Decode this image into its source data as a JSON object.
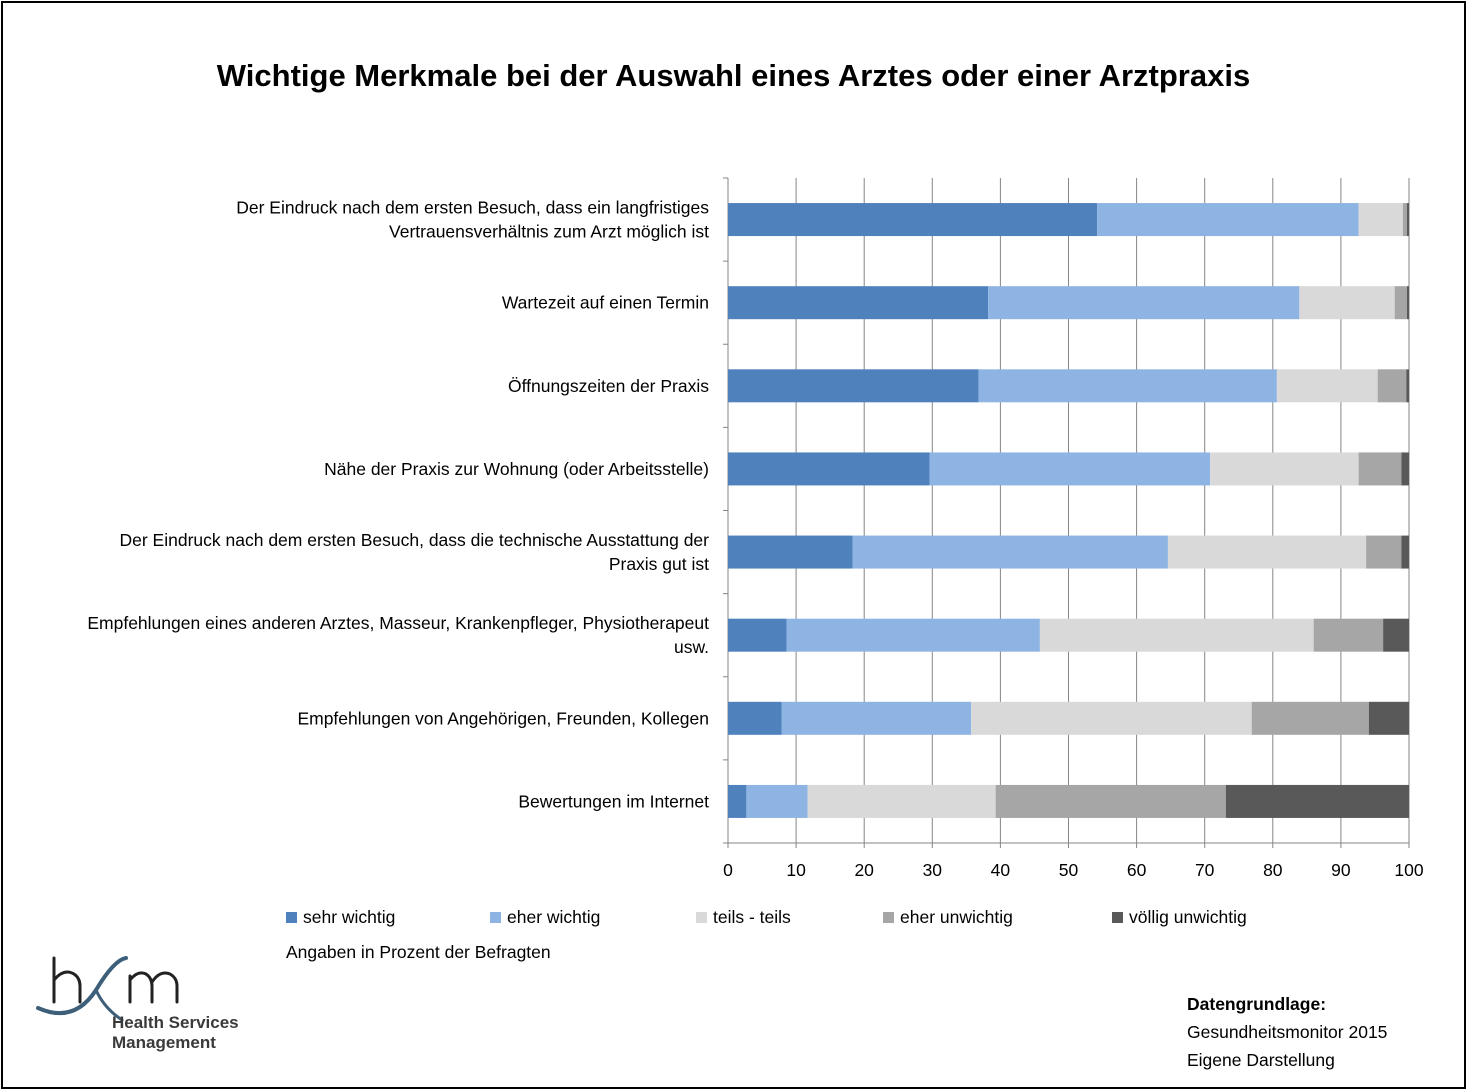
{
  "title": "Wichtige Merkmale bei der Auswahl eines Arztes oder einer Arztpraxis",
  "note": "Angaben in Prozent der Befragten",
  "logo": {
    "mark": "hsm",
    "name_line1": "Health Services",
    "name_line2": "Management",
    "color": "#3d5f7a"
  },
  "source": {
    "heading": "Datengrundlage:",
    "line1": "Gesundheitsmonitor 2015",
    "line2": "Eigene Darstellung"
  },
  "chart_data": {
    "type": "bar",
    "orientation": "horizontal",
    "stacked": true,
    "title": "Wichtige Merkmale bei der Auswahl eines Arztes oder einer Arztpraxis",
    "xlim": [
      0,
      100
    ],
    "xticks": [
      0,
      10,
      20,
      30,
      40,
      50,
      60,
      70,
      80,
      90,
      100
    ],
    "grid": "vertical",
    "legend_position": "bottom",
    "categories": [
      [
        "Der Eindruck nach dem ersten Besuch, dass ein langfristiges",
        "Vertrauensverhältnis zum Arzt möglich ist"
      ],
      [
        "Wartezeit auf einen Termin"
      ],
      [
        "Öffnungszeiten der Praxis"
      ],
      [
        "Nähe der Praxis zur Wohnung (oder Arbeitsstelle)"
      ],
      [
        "Der Eindruck nach dem ersten Besuch, dass die technische Ausstattung der",
        "Praxis gut ist"
      ],
      [
        "Empfehlungen eines anderen Arztes, Masseur, Krankenpfleger, Physiotherapeut",
        "usw."
      ],
      [
        "Empfehlungen von Angehörigen, Freunden, Kollegen"
      ],
      [
        "Bewertungen im Internet"
      ]
    ],
    "series": [
      {
        "name": "sehr wichtig",
        "color": "#4f81bd",
        "values": [
          54.2,
          38.2,
          36.8,
          29.6,
          18.3,
          8.6,
          7.9,
          2.7
        ]
      },
      {
        "name": "eher wichtig",
        "color": "#8eb4e3",
        "values": [
          38.4,
          45.7,
          43.8,
          41.2,
          46.3,
          37.2,
          27.8,
          9.0
        ]
      },
      {
        "name": "teils - teils",
        "color": "#d9d9d9",
        "values": [
          6.5,
          14.0,
          14.8,
          21.8,
          29.1,
          40.2,
          41.2,
          27.6
        ]
      },
      {
        "name": "eher unwichtig",
        "color": "#a6a6a6",
        "values": [
          0.6,
          1.8,
          4.2,
          6.3,
          5.2,
          10.2,
          17.2,
          33.8
        ]
      },
      {
        "name": "völlig unwichtig",
        "color": "#595959",
        "values": [
          0.3,
          0.3,
          0.4,
          1.1,
          1.1,
          3.8,
          5.9,
          26.9
        ]
      }
    ]
  }
}
